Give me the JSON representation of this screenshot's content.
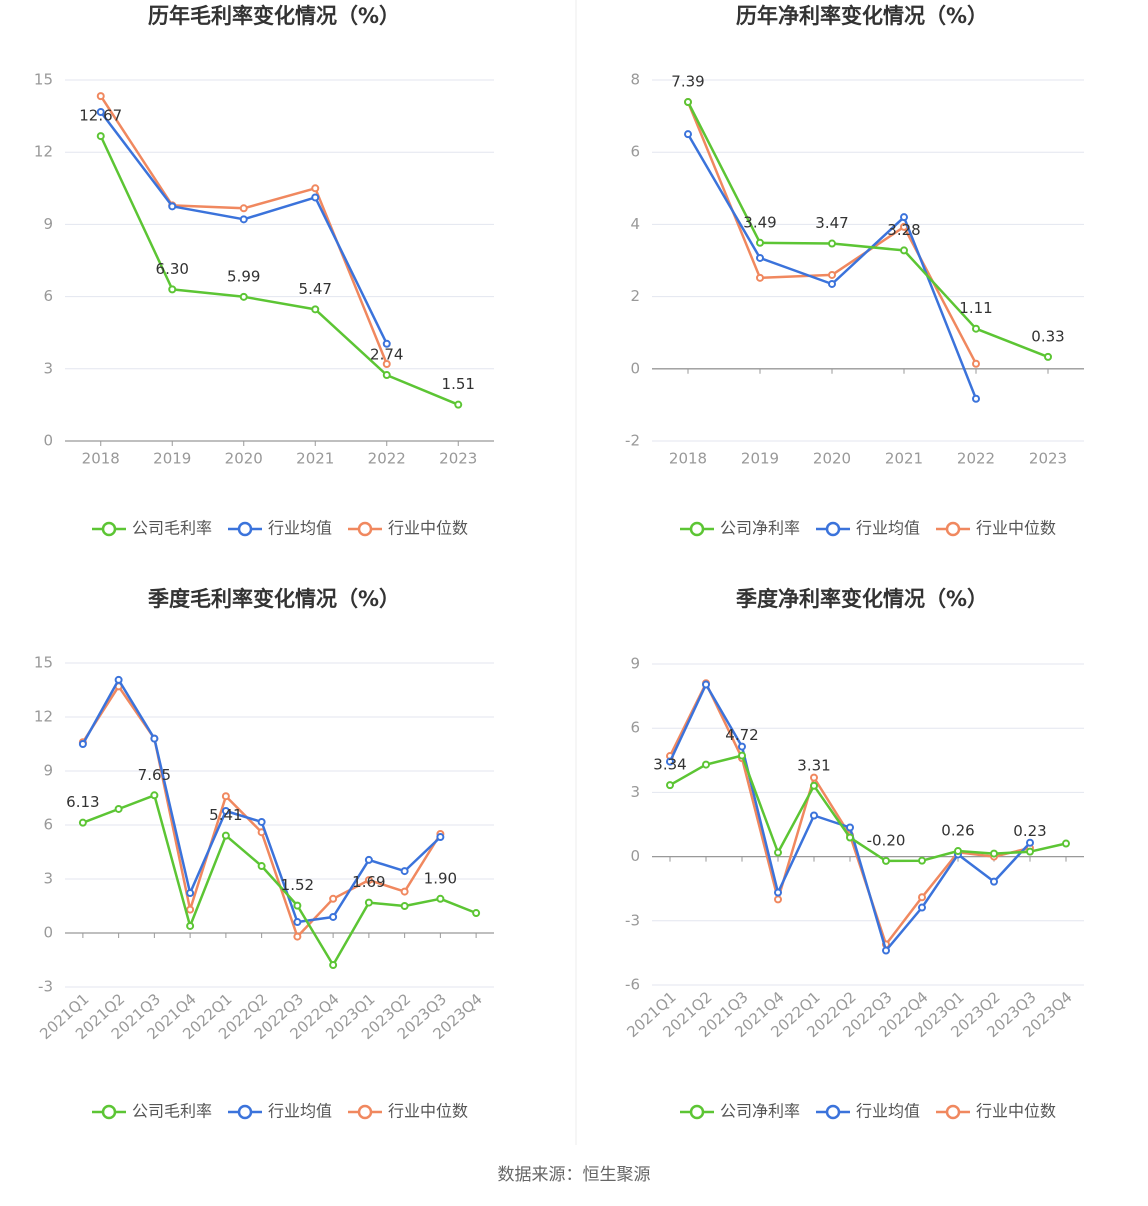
{
  "chart_data": [
    {
      "type": "line",
      "title": "历年毛利率变化情况（%）",
      "categories": [
        "2018",
        "2019",
        "2020",
        "2021",
        "2022",
        "2023"
      ],
      "series": [
        {
          "name": "公司毛利率",
          "color": "#5cc534",
          "values": [
            12.67,
            6.3,
            5.99,
            5.47,
            2.74,
            1.51
          ],
          "value_labels": [
            "12.67",
            "6.30",
            "5.99",
            "5.47",
            "2.74",
            "1.51"
          ]
        },
        {
          "name": "行业均值",
          "color": "#3b73db",
          "values": [
            13.67,
            9.75,
            9.21,
            10.12,
            4.04,
            null
          ]
        },
        {
          "name": "行业中位数",
          "color": "#f0885f",
          "values": [
            14.33,
            9.79,
            9.67,
            10.5,
            3.2,
            null
          ]
        }
      ],
      "ylim": [
        0,
        15
      ],
      "yticks": [
        0,
        3,
        6,
        9,
        12,
        15
      ],
      "grid": true,
      "legend": "bottom"
    },
    {
      "type": "line",
      "title": "历年净利率变化情况（%）",
      "categories": [
        "2018",
        "2019",
        "2020",
        "2021",
        "2022",
        "2023"
      ],
      "series": [
        {
          "name": "公司净利率",
          "color": "#5cc534",
          "values": [
            7.39,
            3.49,
            3.47,
            3.28,
            1.11,
            0.33
          ],
          "value_labels": [
            "7.39",
            "3.49",
            "3.47",
            "3.28",
            "1.11",
            "0.33"
          ]
        },
        {
          "name": "行业均值",
          "color": "#3b73db",
          "values": [
            6.5,
            3.07,
            2.35,
            4.2,
            -0.83,
            null
          ]
        },
        {
          "name": "行业中位数",
          "color": "#f0885f",
          "values": [
            7.39,
            2.52,
            2.6,
            3.93,
            0.14,
            null
          ]
        }
      ],
      "ylim": [
        -2,
        8
      ],
      "yticks": [
        -2,
        0,
        2,
        4,
        6,
        8
      ],
      "grid": true,
      "legend": "bottom"
    },
    {
      "type": "line",
      "title": "季度毛利率变化情况（%）",
      "categories": [
        "2021Q1",
        "2021Q2",
        "2021Q3",
        "2021Q4",
        "2022Q1",
        "2022Q2",
        "2022Q3",
        "2022Q4",
        "2023Q1",
        "2023Q2",
        "2023Q3",
        "2023Q4"
      ],
      "series": [
        {
          "name": "公司毛利率",
          "color": "#5cc534",
          "values": [
            6.13,
            6.89,
            7.65,
            0.39,
            5.41,
            3.72,
            1.52,
            -1.78,
            1.69,
            1.5,
            1.9,
            1.11
          ],
          "value_labels": [
            "6.13",
            null,
            "7.65",
            null,
            "5.41",
            null,
            "1.52",
            null,
            "1.69",
            null,
            "1.90",
            null
          ]
        },
        {
          "name": "行业均值",
          "color": "#3b73db",
          "values": [
            10.5,
            14.06,
            10.8,
            2.22,
            6.78,
            6.17,
            0.61,
            0.89,
            4.06,
            3.44,
            5.33,
            null
          ]
        },
        {
          "name": "行业中位数",
          "color": "#f0885f",
          "values": [
            10.6,
            13.7,
            10.8,
            1.3,
            7.6,
            5.6,
            -0.2,
            1.9,
            2.94,
            2.3,
            5.5,
            null
          ]
        }
      ],
      "ylim": [
        -3,
        15
      ],
      "yticks": [
        -3,
        0,
        3,
        6,
        9,
        12,
        15
      ],
      "grid": true,
      "legend": "bottom"
    },
    {
      "type": "line",
      "title": "季度净利率变化情况（%）",
      "categories": [
        "2021Q1",
        "2021Q2",
        "2021Q3",
        "2021Q4",
        "2022Q1",
        "2022Q2",
        "2022Q3",
        "2022Q4",
        "2023Q1",
        "2023Q2",
        "2023Q3",
        "2023Q4"
      ],
      "series": [
        {
          "name": "公司净利率",
          "color": "#5cc534",
          "values": [
            3.34,
            4.3,
            4.72,
            0.19,
            3.31,
            0.89,
            -0.2,
            -0.19,
            0.26,
            0.14,
            0.23,
            0.61
          ],
          "value_labels": [
            "3.34",
            null,
            "4.72",
            null,
            "3.31",
            null,
            "-0.20",
            null,
            "0.26",
            null,
            "0.23",
            null
          ]
        },
        {
          "name": "行业均值",
          "color": "#3b73db",
          "values": [
            4.44,
            8.04,
            5.14,
            -1.68,
            1.92,
            1.36,
            -4.39,
            -2.38,
            0.1,
            -1.17,
            0.65,
            null
          ]
        },
        {
          "name": "行业中位数",
          "color": "#f0885f",
          "values": [
            4.7,
            8.1,
            4.6,
            -2.0,
            3.69,
            1.0,
            -4.1,
            -1.9,
            0.2,
            0.0,
            0.4,
            null
          ]
        }
      ],
      "ylim": [
        -6,
        9
      ],
      "yticks": [
        -6,
        -3,
        0,
        3,
        6,
        9
      ],
      "grid": true,
      "legend": "bottom"
    }
  ],
  "source": "数据来源：恒生聚源"
}
